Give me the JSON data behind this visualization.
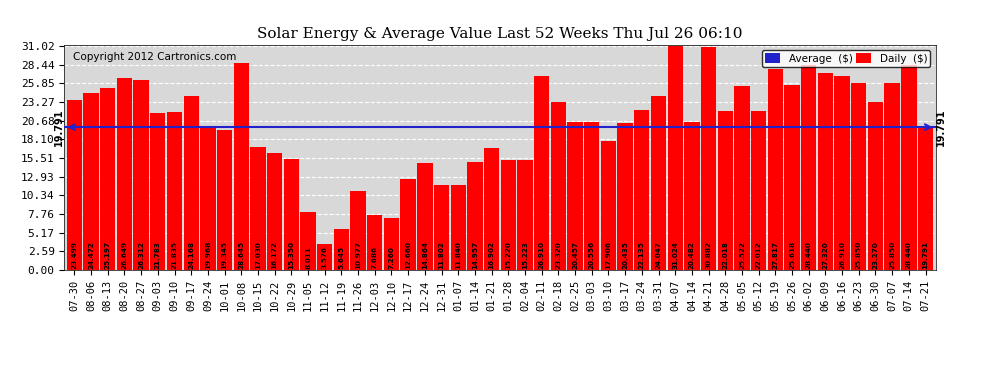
{
  "title": "Solar Energy & Average Value Last 52 Weeks Thu Jul 26 06:10",
  "copyright": "Copyright 2012 Cartronics.com",
  "average_line": 19.791,
  "average_label": "19.791",
  "bar_color": "#ff0000",
  "average_line_color": "#2222cc",
  "plot_bg_color": "#d8d8d8",
  "grid_color": "white",
  "ytick_values": [
    0.0,
    2.59,
    5.17,
    7.76,
    10.34,
    12.93,
    15.51,
    18.1,
    20.68,
    23.27,
    25.85,
    28.44,
    31.02
  ],
  "categories": [
    "07-30",
    "08-06",
    "08-13",
    "08-20",
    "08-27",
    "09-03",
    "09-10",
    "09-17",
    "09-24",
    "10-01",
    "10-08",
    "10-15",
    "10-22",
    "10-29",
    "11-05",
    "11-12",
    "11-19",
    "11-26",
    "12-03",
    "12-10",
    "12-17",
    "12-24",
    "12-31",
    "01-07",
    "01-14",
    "01-21",
    "01-28",
    "02-04",
    "02-11",
    "02-18",
    "02-25",
    "03-03",
    "03-10",
    "03-17",
    "03-24",
    "03-31",
    "04-07",
    "04-14",
    "04-21",
    "04-28",
    "05-05",
    "05-12",
    "05-19",
    "05-26",
    "06-02",
    "06-09",
    "06-16",
    "06-23",
    "06-30",
    "07-07",
    "07-14",
    "07-21"
  ],
  "values": [
    23.499,
    24.472,
    25.197,
    26.649,
    26.312,
    21.783,
    21.835,
    24.168,
    19.968,
    19.345,
    28.645,
    17.03,
    16.172,
    15.35,
    8.011,
    3.576,
    5.645,
    10.977,
    7.686,
    7.26,
    12.66,
    14.864,
    11.802,
    11.84,
    14.957,
    16.902,
    15.22,
    15.223,
    26.91,
    23.32,
    20.457,
    20.556,
    17.906,
    20.435,
    22.135,
    24.047,
    31.024,
    20.482,
    30.882,
    22.018,
    25.522,
    22.012,
    27.817,
    25.618,
    28.44,
    27.32,
    26.91,
    25.85,
    23.27,
    25.85,
    28.44,
    19.791
  ],
  "legend_average_color": "#2222cc",
  "legend_daily_color": "#ff0000",
  "legend_average_label": "Average  ($)",
  "legend_daily_label": "Daily  ($)",
  "ylim_max": 31.02,
  "bar_width": 0.92
}
